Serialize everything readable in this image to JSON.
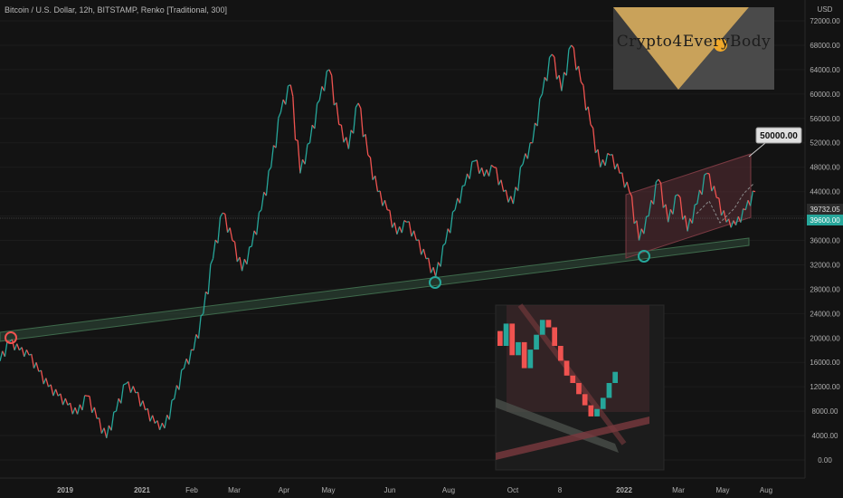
{
  "header": {
    "title": "Bitcoin / U.S. Dollar, 12h, BITSTAMP, Renko [Traditional, 300]"
  },
  "watermark": {
    "text": "Crypto4EveryBody"
  },
  "colors": {
    "background": "#131313",
    "up": "#26a69a",
    "down": "#ef5350",
    "channel": "#5a2e34",
    "support": "#2f4a38"
  },
  "chart_data": {
    "type": "line",
    "title": "Bitcoin / U.S. Dollar, 12h, BITSTAMP, Renko [Traditional, 300]",
    "xlabel": "",
    "ylabel": "USD",
    "ylim": [
      0,
      72000
    ],
    "y_ticks": [
      "72000.00",
      "68000.00",
      "64000.00",
      "60000.00",
      "56000.00",
      "52000.00",
      "48000.00",
      "44000.00",
      "40000.00",
      "36000.00",
      "32000.00",
      "28000.00",
      "24000.00",
      "20000.00",
      "16000.00",
      "12000.00",
      "8000.00",
      "4000.00",
      "0.00"
    ],
    "x_ticks": [
      "2019",
      "2021",
      "Feb",
      "Mar",
      "Apr",
      "May",
      "Jun",
      "Aug",
      "Oct",
      "8",
      "2022",
      "Mar",
      "May",
      "Aug"
    ],
    "series": [
      {
        "values": [
          16200,
          19400,
          18000,
          17200,
          14500,
          12000,
          10500,
          9000,
          7500,
          10500,
          6800,
          3600,
          8000,
          12500,
          11000,
          8200,
          6000,
          5200,
          10000,
          15000,
          18000,
          24000,
          33000,
          40500,
          36000,
          31000,
          35000,
          41000,
          48000,
          57000,
          61500,
          47000,
          52000,
          59000,
          64000,
          55000,
          51000,
          58500,
          50000,
          44000,
          41000,
          37000,
          39000,
          36000,
          33000,
          30000,
          35500,
          41000,
          45000,
          49000,
          46500,
          48000,
          44000,
          42000,
          48500,
          52000,
          60000,
          66500,
          60500,
          68000,
          62000,
          55000,
          48000,
          50000,
          47000,
          44000,
          36000,
          40000,
          46000,
          39000,
          43500,
          37500,
          42000,
          47000,
          43000,
          39000,
          38500,
          41000,
          44000
        ]
      }
    ],
    "annotations": [
      {
        "type": "price-label",
        "text": "50000.00"
      },
      {
        "type": "price-label",
        "text": "39732.05"
      },
      {
        "type": "price-label",
        "text": "39600.00"
      }
    ]
  }
}
